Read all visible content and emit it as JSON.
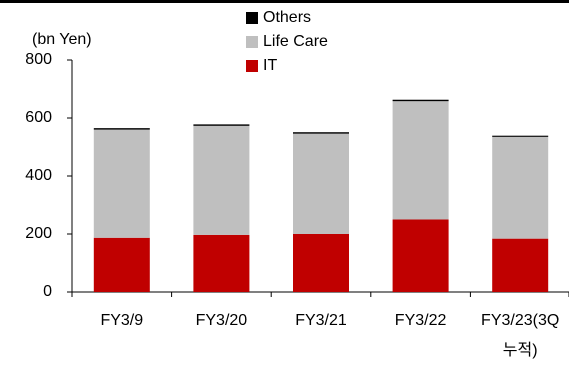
{
  "chart_data": {
    "type": "stacked_bar",
    "y_axis_label": "(bn Yen)",
    "categories": [
      "FY3/9",
      "FY3/20",
      "FY3/21",
      "FY3/22",
      "FY3/23(3Q\n누적)"
    ],
    "series": [
      {
        "name": "IT",
        "color": "#c00000",
        "values": [
          187,
          197,
          200,
          250,
          184
        ]
      },
      {
        "name": "Life Care",
        "color": "#bfbfbf",
        "values": [
          373,
          376,
          346,
          408,
          351
        ]
      },
      {
        "name": "Others",
        "color": "#000000",
        "values": [
          5,
          5,
          5,
          5,
          4
        ]
      }
    ],
    "ylim": [
      0,
      800
    ],
    "yticks": [
      0,
      200,
      400,
      600,
      800
    ],
    "grid": false,
    "legend": "top"
  }
}
